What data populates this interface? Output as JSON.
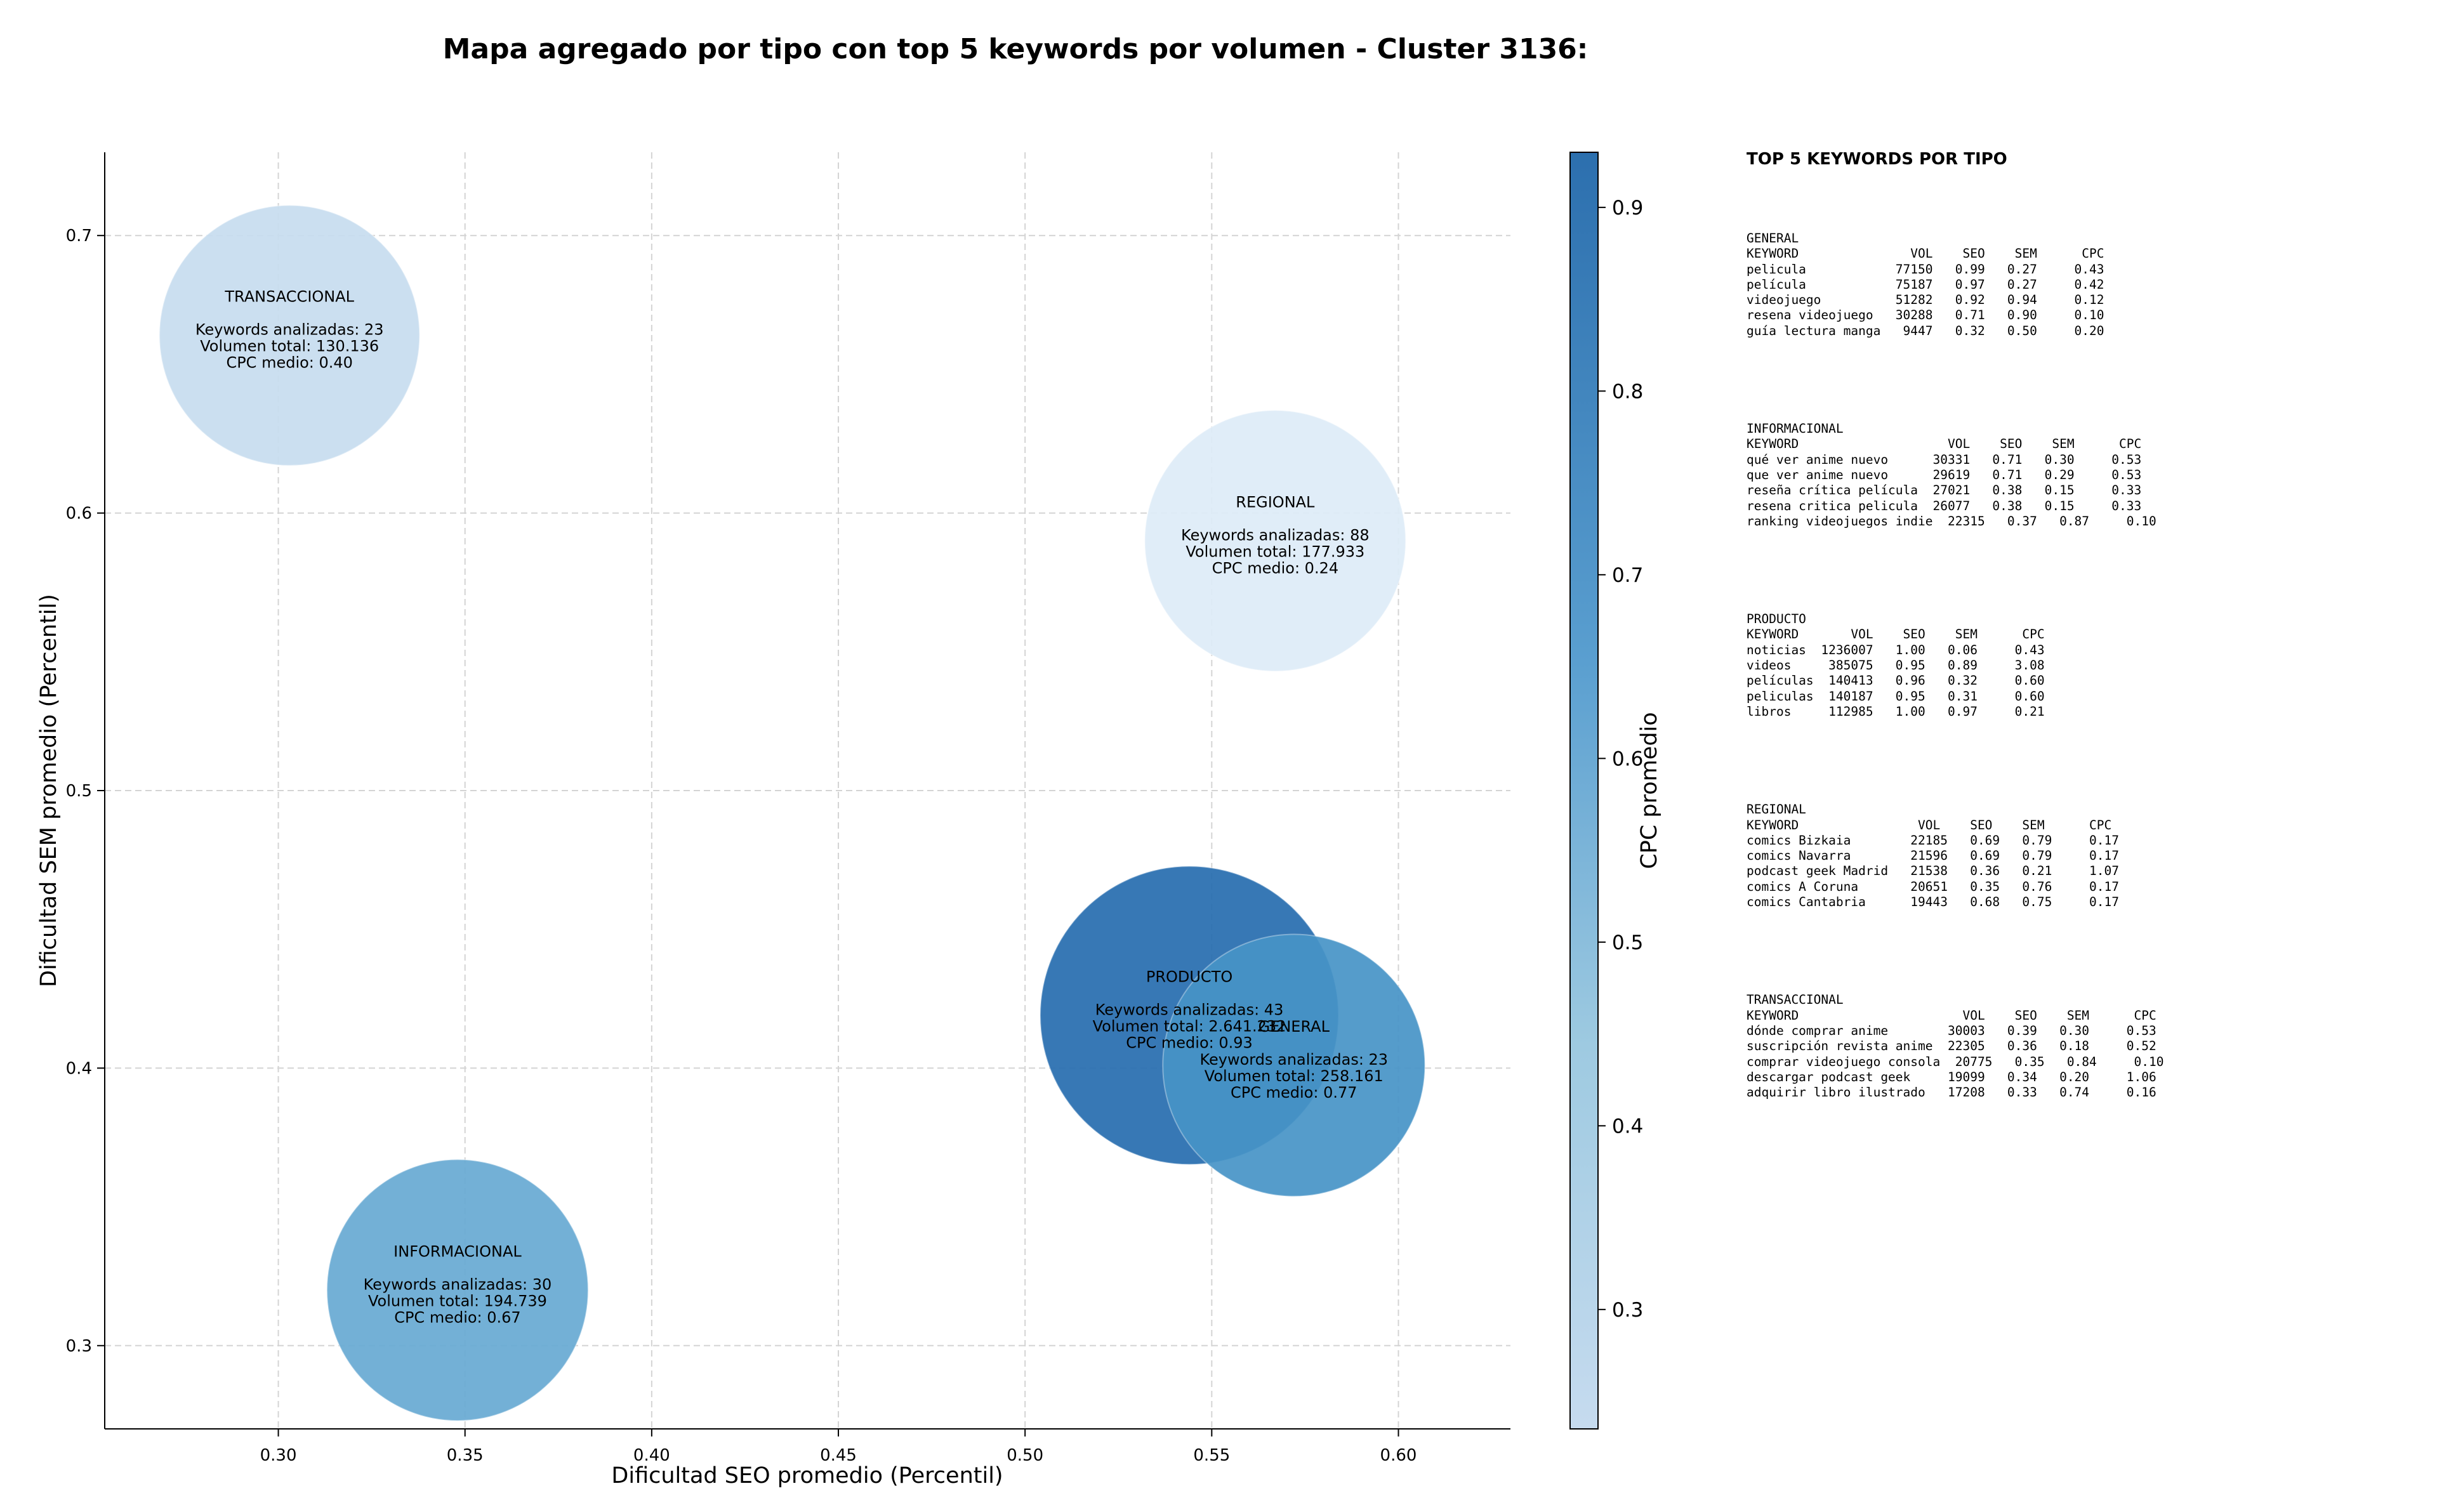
{
  "title": "Mapa agregado por tipo con top 5 keywords por volumen - Cluster 3136:",
  "colorbar": {
    "label": "CPC promedio",
    "ticks": [
      "0.3",
      "0.4",
      "0.5",
      "0.6",
      "0.7",
      "0.8",
      "0.9"
    ],
    "colormap": "Blues",
    "range": [
      0.235,
      0.93
    ]
  },
  "chart_data": {
    "type": "scatter",
    "title": "Mapa agregado por tipo con top 5 keywords por volumen - Cluster 3136:",
    "xlabel": "Dificultad SEO promedio (Percentil)",
    "ylabel": "Dificultad SEM promedio (Percentil)",
    "xlim": [
      0.2535,
      0.63
    ],
    "ylim": [
      0.27,
      0.73
    ],
    "xticks": [
      "0.30",
      "0.35",
      "0.40",
      "0.45",
      "0.50",
      "0.55",
      "0.60"
    ],
    "yticks": [
      "0.3",
      "0.4",
      "0.5",
      "0.6",
      "0.7"
    ],
    "grid": true,
    "size_variable": "Volumen total",
    "color_variable": "CPC promedio",
    "points": [
      {
        "name": "TRANSACCIONAL",
        "x": 0.303,
        "y": 0.664,
        "cpc": 0.4,
        "keywords_label": "Keywords analizadas: 23",
        "volume_label": "Volumen total: 130.136",
        "cpc_label": "CPC medio: 0.40",
        "volume": 130136
      },
      {
        "name": "REGIONAL",
        "x": 0.567,
        "y": 0.59,
        "cpc": 0.24,
        "keywords_label": "Keywords analizadas: 88",
        "volume_label": "Volumen total: 177.933",
        "cpc_label": "CPC medio: 0.24",
        "volume": 177933
      },
      {
        "name": "INFORMACIONAL",
        "x": 0.348,
        "y": 0.32,
        "cpc": 0.67,
        "keywords_label": "Keywords analizadas: 30",
        "volume_label": "Volumen total: 194.739",
        "cpc_label": "CPC medio: 0.67",
        "volume": 194739
      },
      {
        "name": "PRODUCTO",
        "x": 0.544,
        "y": 0.419,
        "cpc": 0.93,
        "keywords_label": "Keywords analizadas: 43",
        "volume_label": "Volumen total: 2.641.232",
        "cpc_label": "CPC medio: 0.93",
        "volume": 2641232
      },
      {
        "name": "GENERAL",
        "x": 0.572,
        "y": 0.401,
        "cpc": 0.77,
        "keywords_label": "Keywords analizadas: 23",
        "volume_label": "Volumen total: 258.161",
        "cpc_label": "CPC medio: 0.77",
        "volume": 258161
      }
    ]
  },
  "panel": {
    "title": "TOP 5 KEYWORDS POR TIPO",
    "types": [
      {
        "name": "GENERAL",
        "lines": [
          "KEYWORD               VOL    SEO    SEM      CPC",
          "pelicula            77150   0.99   0.27     0.43",
          "película            75187   0.97   0.27     0.42",
          "videojuego          51282   0.92   0.94     0.12",
          "resena videojuego   30288   0.71   0.90     0.10",
          "guía lectura manga   9447   0.32   0.50     0.20"
        ]
      },
      {
        "name": "INFORMACIONAL",
        "lines": [
          "KEYWORD                    VOL    SEO    SEM      CPC",
          "qué ver anime nuevo      30331   0.71   0.30     0.53",
          "que ver anime nuevo      29619   0.71   0.29     0.53",
          "reseña crítica película  27021   0.38   0.15     0.33",
          "resena critica pelicula  26077   0.38   0.15     0.33",
          "ranking videojuegos indie  22315   0.37   0.87     0.10"
        ]
      },
      {
        "name": "PRODUCTO",
        "lines": [
          "KEYWORD       VOL    SEO    SEM      CPC",
          "noticias  1236007   1.00   0.06     0.43",
          "videos     385075   0.95   0.89     3.08",
          "películas  140413   0.96   0.32     0.60",
          "peliculas  140187   0.95   0.31     0.60",
          "libros     112985   1.00   0.97     0.21"
        ]
      },
      {
        "name": "REGIONAL",
        "lines": [
          "KEYWORD                VOL    SEO    SEM      CPC",
          "comics Bizkaia        22185   0.69   0.79     0.17",
          "comics Navarra        21596   0.69   0.79     0.17",
          "podcast geek Madrid   21538   0.36   0.21     1.07",
          "comics A Coruna       20651   0.35   0.76     0.17",
          "comics Cantabria      19443   0.68   0.75     0.17"
        ]
      },
      {
        "name": "TRANSACCIONAL",
        "lines": [
          "KEYWORD                      VOL    SEO    SEM      CPC",
          "dónde comprar anime        30003   0.39   0.30     0.53",
          "suscripción revista anime  22305   0.36   0.18     0.52",
          "comprar videojuego consola  20775   0.35   0.84     0.10",
          "descargar podcast geek     19099   0.34   0.20     1.06",
          "adquirir libro ilustrado   17208   0.33   0.74     0.16"
        ]
      }
    ]
  }
}
